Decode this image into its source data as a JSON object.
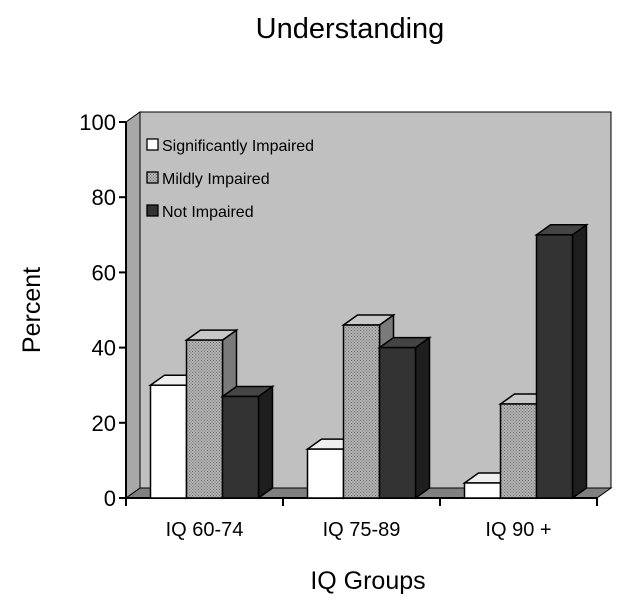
{
  "chart_data": {
    "type": "bar",
    "title": "Understanding",
    "xlabel": "IQ Groups",
    "ylabel": "Percent",
    "categories": [
      "IQ 60-74",
      "IQ 75-89",
      "IQ 90 +"
    ],
    "ylim": [
      0,
      100
    ],
    "yticks": [
      "0",
      "20",
      "40",
      "60",
      "80",
      "100"
    ],
    "legend_position": "top-left",
    "three_d": true,
    "series": [
      {
        "name": "Significantly Impaired",
        "values": [
          30,
          13,
          4
        ],
        "color": "#ffffff"
      },
      {
        "name": "Mildly Impaired",
        "values": [
          42,
          46,
          25
        ],
        "color": "#a0a0a0"
      },
      {
        "name": "Not Impaired",
        "values": [
          27,
          40,
          70
        ],
        "color": "#333333"
      }
    ],
    "wall_color": "#c0c0c0"
  }
}
